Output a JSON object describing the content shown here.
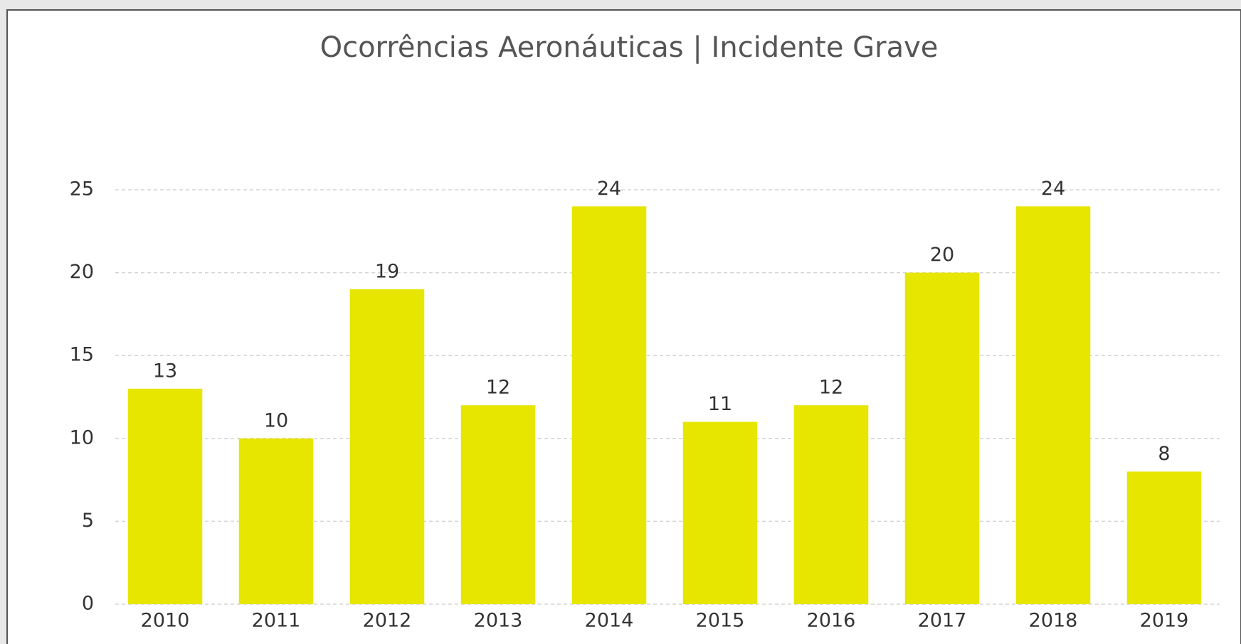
{
  "chart_data": {
    "type": "bar",
    "title": "Ocorrências Aeronáuticas | Incidente Grave",
    "categories": [
      "2010",
      "2011",
      "2012",
      "2013",
      "2014",
      "2015",
      "2016",
      "2017",
      "2018",
      "2019"
    ],
    "values": [
      13,
      10,
      19,
      12,
      24,
      11,
      12,
      20,
      24,
      8
    ],
    "color": "#e6e600",
    "ylim": [
      0,
      25
    ],
    "yticks": [
      0,
      5,
      10,
      15,
      20,
      25
    ],
    "grid": true
  }
}
